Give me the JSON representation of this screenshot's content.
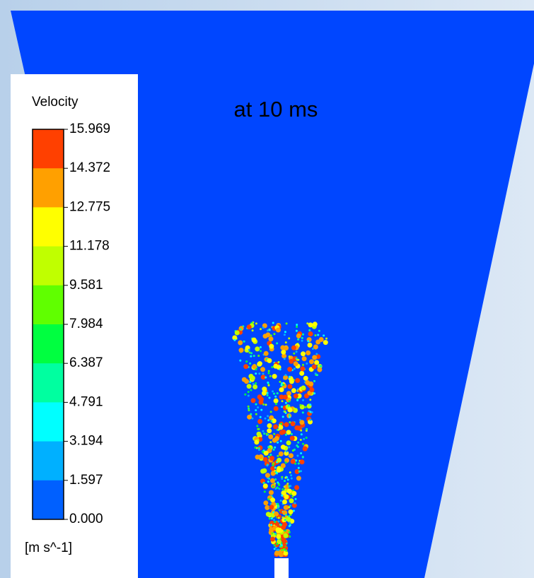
{
  "annotation": "at 10 ms",
  "legend": {
    "title": "Velocity",
    "ticks": [
      "15.969",
      "14.372",
      "12.775",
      "11.178",
      "9.581",
      "7.984",
      "6.387",
      "4.791",
      "3.194",
      "1.597",
      "0.000"
    ],
    "unit": "[m s^-1]",
    "colors": [
      "#ff4000",
      "#ffa000",
      "#ffff00",
      "#c0ff00",
      "#60ff00",
      "#00ff40",
      "#00ffa0",
      "#00ffff",
      "#00b0ff",
      "#0060ff"
    ]
  }
}
